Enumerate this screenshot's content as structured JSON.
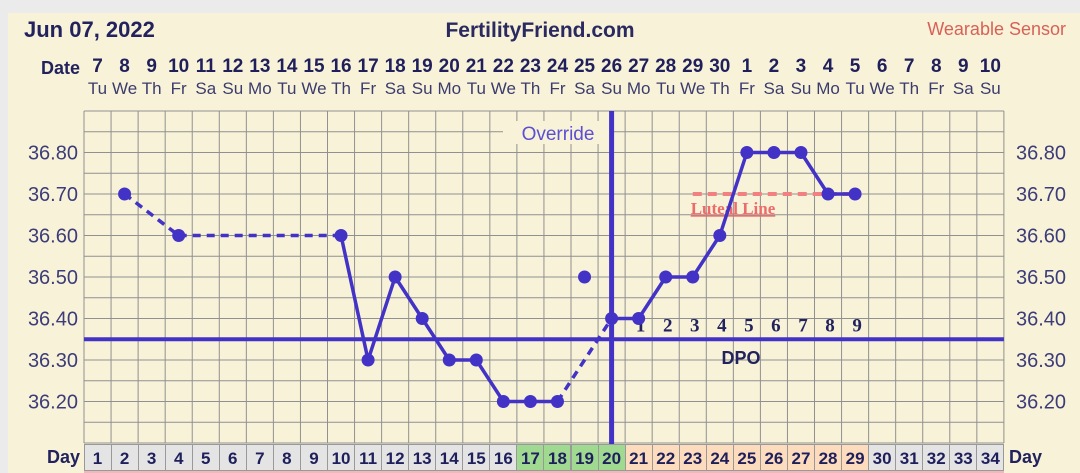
{
  "header": {
    "date": "Jun 07, 2022",
    "site": "FertilityFriend.com",
    "mode": "Wearable Sensor"
  },
  "axis": {
    "date_label": "Date",
    "day_label": "Day",
    "dates": [
      7,
      8,
      9,
      10,
      11,
      12,
      13,
      14,
      15,
      16,
      17,
      18,
      19,
      20,
      21,
      22,
      23,
      24,
      25,
      26,
      27,
      28,
      29,
      30,
      1,
      2,
      3,
      4,
      5,
      6,
      7,
      8,
      9,
      10
    ],
    "weekdays": [
      "Tu",
      "We",
      "Th",
      "Fr",
      "Sa",
      "Su",
      "Mo",
      "Tu",
      "We",
      "Th",
      "Fr",
      "Sa",
      "Su",
      "Mo",
      "Tu",
      "We",
      "Th",
      "Fr",
      "Sa",
      "Su",
      "Mo",
      "Tu",
      "We",
      "Th",
      "Fr",
      "Sa",
      "Su",
      "Mo",
      "Tu",
      "We",
      "Th",
      "Fr",
      "Sa",
      "Su"
    ],
    "temp_ticks": [
      "36.80",
      "36.70",
      "36.60",
      "36.50",
      "36.40",
      "36.30",
      "36.20"
    ],
    "cycle_days": [
      1,
      2,
      3,
      4,
      5,
      6,
      7,
      8,
      9,
      10,
      11,
      12,
      13,
      14,
      15,
      16,
      17,
      18,
      19,
      20,
      21,
      22,
      23,
      24,
      25,
      26,
      27,
      28,
      29,
      30,
      31,
      32,
      33,
      34
    ]
  },
  "chart_data": {
    "type": "line",
    "ylim": [
      36.1,
      36.9
    ],
    "num_days": 34,
    "grid_step": 0.05,
    "temps": [
      {
        "day": 2,
        "temp": 36.7
      },
      {
        "day": 4,
        "temp": 36.6
      },
      {
        "day": 10,
        "temp": 36.6
      },
      {
        "day": 11,
        "temp": 36.3
      },
      {
        "day": 12,
        "temp": 36.5
      },
      {
        "day": 13,
        "temp": 36.4
      },
      {
        "day": 14,
        "temp": 36.3
      },
      {
        "day": 15,
        "temp": 36.3
      },
      {
        "day": 16,
        "temp": 36.2
      },
      {
        "day": 17,
        "temp": 36.2
      },
      {
        "day": 18,
        "temp": 36.2
      },
      {
        "day": 19,
        "temp": 36.5,
        "connected": false
      },
      {
        "day": 20,
        "temp": 36.4
      },
      {
        "day": 21,
        "temp": 36.4
      },
      {
        "day": 22,
        "temp": 36.5
      },
      {
        "day": 23,
        "temp": 36.5
      },
      {
        "day": 24,
        "temp": 36.6
      },
      {
        "day": 25,
        "temp": 36.8
      },
      {
        "day": 26,
        "temp": 36.8
      },
      {
        "day": 27,
        "temp": 36.8
      },
      {
        "day": 28,
        "temp": 36.7
      },
      {
        "day": 29,
        "temp": 36.7
      }
    ],
    "dashed_segments": [
      [
        2,
        4
      ],
      [
        4,
        10
      ],
      [
        18,
        20
      ]
    ],
    "coverline_temp": 36.35,
    "ovulation_day": 20,
    "override_label": "Override",
    "luteal_line": {
      "temp": 36.7,
      "from_day": 23,
      "to_day": 29,
      "label": "Luteal Line"
    },
    "dpo": {
      "label": "DPO",
      "start_day": 21,
      "numbers": [
        1,
        2,
        3,
        4,
        5,
        6,
        7,
        8,
        9
      ],
      "level_temp": 36.4
    },
    "day_cell_groups": [
      {
        "from": 1,
        "to": 16,
        "color": "#e4e4e4"
      },
      {
        "from": 17,
        "to": 20,
        "color": "#a0da90"
      },
      {
        "from": 21,
        "to": 29,
        "color": "#fcdcbd"
      },
      {
        "from": 30,
        "to": 34,
        "color": "#e4e4e4"
      }
    ],
    "colors": {
      "line": "#4233c6",
      "coverline": "#4233c6",
      "ovulation_line": "#4233c6",
      "luteal": "#f28080",
      "luteal_text": "#ee6b6b",
      "grid": "#909090",
      "background": "#f8f3d8",
      "text_navy": "#22225e",
      "tick_text": "#3c3c7a",
      "override_text": "#5b4fd2",
      "sensor_text": "#d96057"
    }
  }
}
